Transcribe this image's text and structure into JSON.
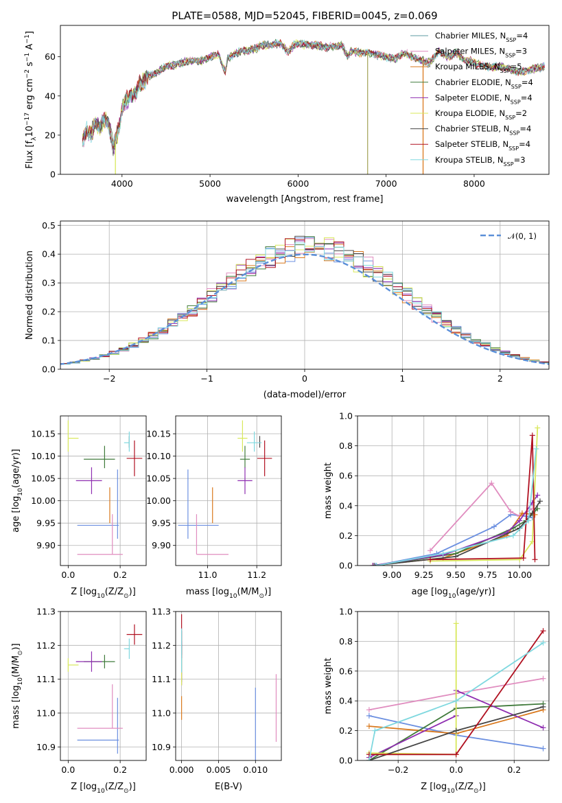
{
  "chart_data": [
    {
      "panel": "spectrum",
      "type": "line",
      "title": "PLATE=0588, MJD=52045, FIBERID=0045, z=0.069",
      "xlabel": "wavelength [Angstrom, rest frame]",
      "ylabel_parts": {
        "a": "Flux [f",
        "a_sub": "λ",
        "b": "10",
        "b_sup": "−17",
        "c": " erg cm",
        "c_sup": "−2",
        "d": " s",
        "d_sup": "−1",
        "e": " A",
        "e_sup": "−1",
        "f": "]"
      },
      "xlim": [
        3300,
        8850
      ],
      "ylim": [
        0,
        76
      ],
      "xticks": [
        "4000",
        "5000",
        "6000",
        "7000",
        "8000"
      ],
      "yticks": [
        "0",
        "20",
        "40",
        "60"
      ],
      "grid": false,
      "legend_placement": "top-right",
      "x": [
        3550,
        3600,
        3650,
        3700,
        3750,
        3800,
        3850,
        3900,
        3950,
        4000,
        4050,
        4100,
        4150,
        4200,
        4300,
        4400,
        4500,
        4600,
        4700,
        4800,
        4900,
        5000,
        5100,
        5175,
        5200,
        5300,
        5400,
        5500,
        5600,
        5700,
        5800,
        5893,
        5950,
        6000,
        6100,
        6200,
        6300,
        6400,
        6500,
        6563,
        6600,
        6700,
        6800,
        6900,
        7000,
        7100,
        7200,
        7300,
        7400,
        7500,
        7600,
        7700,
        7800,
        7900,
        8000,
        8100,
        8200,
        8300,
        8400,
        8500,
        8600,
        8700,
        8800
      ],
      "flux_avg": [
        17,
        22,
        20,
        27,
        24,
        29,
        26,
        14,
        20,
        33,
        38,
        40,
        41,
        46,
        50,
        52,
        55,
        56,
        57,
        58,
        58,
        60,
        61,
        52,
        59,
        62,
        63,
        64,
        66,
        66,
        67,
        62,
        66,
        67,
        66,
        66,
        65,
        65,
        66,
        60,
        63,
        62,
        62,
        61,
        60,
        59,
        62,
        60,
        58,
        57,
        63,
        60,
        62,
        58,
        57,
        55,
        55,
        55,
        54,
        52,
        53,
        54,
        55
      ],
      "series": [
        {
          "name_pre": "Chabrier MILES, N",
          "name_sub": "SSP",
          "name_post": "=4",
          "color": "#5b9aa0"
        },
        {
          "name_pre": "Salpeter MILES, N",
          "name_sub": "SSP",
          "name_post": "=3",
          "color": "#e08cbf"
        },
        {
          "name_pre": "Kroupa MILES, N",
          "name_sub": "SSP",
          "name_post": "=5",
          "color": "#d9781c"
        },
        {
          "name_pre": "Chabrier ELODIE, N",
          "name_sub": "SSP",
          "name_post": "=4",
          "color": "#3f7a3a"
        },
        {
          "name_pre": "Salpeter ELODIE, N",
          "name_sub": "SSP",
          "name_post": "=4",
          "color": "#8e2db0"
        },
        {
          "name_pre": "Kroupa ELODIE, N",
          "name_sub": "SSP",
          "name_post": "=2",
          "color": "#d8e85a"
        },
        {
          "name_pre": "Chabrier STELIB, N",
          "name_sub": "SSP",
          "name_post": "=4",
          "color": "#444444"
        },
        {
          "name_pre": "Salpeter STELIB, N",
          "name_sub": "SSP",
          "name_post": "=4",
          "color": "#b01020"
        },
        {
          "name_pre": "Kroupa STELIB, N",
          "name_sub": "SSP",
          "name_post": "=3",
          "color": "#7fd8df"
        }
      ],
      "drops": [
        {
          "x": 3925,
          "color": "#d8e85a"
        },
        {
          "x": 6790,
          "color": "#a8a860"
        },
        {
          "x": 7420,
          "color": "#d9781c"
        }
      ]
    },
    {
      "panel": "residuals",
      "type": "line",
      "xlabel": "(data-model)/error",
      "ylabel": "Normed distribution",
      "xlim": [
        -2.5,
        2.5
      ],
      "ylim": [
        0,
        0.515
      ],
      "xticks": [
        {
          "v": -2,
          "t": "−2"
        },
        {
          "v": -1,
          "t": "−1"
        },
        {
          "v": 0,
          "t": "0"
        },
        {
          "v": 1,
          "t": "1"
        },
        {
          "v": 2,
          "t": "2"
        }
      ],
      "yticks": [
        "0.0",
        "0.1",
        "0.2",
        "0.3",
        "0.4",
        "0.5"
      ],
      "grid": true,
      "legend_placement": "top-right",
      "reference_curve": {
        "name": "𝒩(0, 1)",
        "color": "#5b8fd8"
      },
      "bin_width": 0.1
    },
    {
      "panel": "age_vs_Z",
      "type": "scatter",
      "xlabel_parts": {
        "a": "Z [log",
        "a_sub": "10",
        "b": "(Z/Z",
        "b_sub": "⊙",
        "c": ")]"
      },
      "ylabel_parts": {
        "a": "age  [log",
        "a_sub": "10",
        "b": "(age/yr)]"
      },
      "xlim": [
        -0.03,
        0.3
      ],
      "ylim": [
        9.855,
        10.19
      ],
      "xticks": [
        "0.0",
        "0.2"
      ],
      "yticks": [
        "9.90",
        "9.95",
        "10.00",
        "10.05",
        "10.10",
        "10.15"
      ],
      "grid": true
    },
    {
      "panel": "age_vs_mass",
      "type": "scatter",
      "xlabel_parts": {
        "a": "mass [log",
        "a_sub": "10",
        "b": "(M/M",
        "b_sub": "⊙",
        "c": ")]"
      },
      "xlim": [
        10.87,
        11.3
      ],
      "ylim": [
        9.855,
        10.19
      ],
      "xticks": [
        "11.0",
        "11.2"
      ],
      "yticks": [
        "9.90",
        "9.95",
        "10.00",
        "10.05",
        "10.10",
        "10.15"
      ],
      "grid": true
    },
    {
      "panel": "weight_vs_age",
      "type": "line",
      "xlabel_parts": {
        "a": "age  [log",
        "a_sub": "10",
        "b": "(age/yr)]"
      },
      "ylabel": "mass weight",
      "xlim": [
        8.73,
        10.23
      ],
      "ylim": [
        0,
        1.0
      ],
      "xticks": [
        "9.00",
        "9.25",
        "9.50",
        "9.75",
        "10.00"
      ],
      "yticks": [
        "0.0",
        "0.2",
        "0.4",
        "0.6",
        "0.8",
        "1.0"
      ],
      "grid": true
    },
    {
      "panel": "mass_vs_Z",
      "type": "scatter",
      "xlabel_parts": {
        "a": "Z [log",
        "a_sub": "10",
        "b": "(Z/Z",
        "b_sub": "⊙",
        "c": ")]"
      },
      "ylabel_parts": {
        "a": "mass [log",
        "a_sub": "10",
        "b": "(M/M",
        "b_sub": "⊙",
        "c": ")]"
      },
      "xlim": [
        -0.03,
        0.3
      ],
      "ylim": [
        10.86,
        11.3
      ],
      "xticks": [
        "0.0",
        "0.2"
      ],
      "yticks": [
        "10.9",
        "11.0",
        "11.1",
        "11.2",
        "11.3"
      ],
      "grid": true
    },
    {
      "panel": "mass_vs_EBV",
      "type": "scatter",
      "xlabel": "E(B-V)",
      "xlim": [
        -0.0008,
        0.0135
      ],
      "ylim": [
        10.86,
        11.3
      ],
      "xticks": [
        "0.000",
        "0.005",
        "0.010"
      ],
      "yticks": [
        "10.9",
        "11.0",
        "11.1",
        "11.2",
        "11.3"
      ],
      "grid": true
    },
    {
      "panel": "weight_vs_Z",
      "type": "line",
      "xlabel_parts": {
        "a": "Z [log",
        "a_sub": "10",
        "b": "(Z/Z",
        "b_sub": "⊙",
        "c": ")]"
      },
      "ylabel": "mass weight",
      "xlim": [
        -0.34,
        0.32
      ],
      "ylim": [
        0,
        1.0
      ],
      "xticks": [
        {
          "v": -0.2,
          "t": "−0.2"
        },
        {
          "v": 0.0,
          "t": "0.0"
        },
        {
          "v": 0.2,
          "t": "0.2"
        }
      ],
      "yticks": [
        "0.0",
        "0.2",
        "0.4",
        "0.6",
        "0.8",
        "1.0"
      ],
      "grid": true
    }
  ],
  "models": [
    {
      "color": "#6b8fe0",
      "Z": 0.19,
      "Zerr": 0.0,
      "Zlo": 0.155,
      "Zhi": 0.005,
      "age": 9.945,
      "age_hi": 0.125,
      "age_lo": 0.03,
      "mass": 10.92,
      "mass_lo": 0.04,
      "mass_hi": 0.125,
      "ebv": 0.01,
      "w_age": [
        [
          8.87,
          0.0
        ],
        [
          9.35,
          0.08
        ],
        [
          9.8,
          0.26
        ],
        [
          9.93,
          0.34
        ],
        [
          10.05,
          0.33
        ],
        [
          10.1,
          0.32
        ]
      ],
      "w_Z": [
        [
          -0.3,
          0.3
        ],
        [
          0.0,
          0.17
        ],
        [
          0.3,
          0.08
        ]
      ]
    },
    {
      "color": "#e08cbf",
      "Z": 0.17,
      "Zlo": 0.135,
      "Zhi": 0.04,
      "age": 9.88,
      "age_hi": 0.09,
      "age_lo": 0.0,
      "mass": 10.955,
      "mass_lo": 0.0,
      "mass_hi": 0.13,
      "ebv": 0.0128,
      "w_age": [
        [
          9.3,
          0.1
        ],
        [
          9.78,
          0.55
        ],
        [
          9.93,
          0.36
        ],
        [
          10.0,
          0.33
        ],
        [
          10.1,
          0.38
        ]
      ],
      "w_Z": [
        [
          -0.3,
          0.34
        ],
        [
          0.0,
          0.45
        ],
        [
          0.3,
          0.55
        ]
      ]
    },
    {
      "color": "#d9781c",
      "Z": 0.16,
      "Zlo": 0.0,
      "Zhi": 0.0,
      "age": 10.03,
      "age_hi": 0.0,
      "age_lo": 0.08,
      "mass": 11.02,
      "mass_lo": 0.0,
      "mass_hi": 0.0,
      "ebv": 0.0,
      "w_age": [
        [
          8.85,
          0.0
        ],
        [
          9.4,
          0.05
        ],
        [
          9.9,
          0.2
        ],
        [
          10.02,
          0.35
        ],
        [
          10.12,
          0.34
        ]
      ],
      "w_Z": [
        [
          -0.3,
          0.23
        ],
        [
          0.0,
          0.18
        ],
        [
          0.3,
          0.34
        ]
      ]
    },
    {
      "color": "#3f7a3a",
      "Z": 0.14,
      "Zlo": 0.08,
      "Zhi": 0.04,
      "age": 10.093,
      "age_hi": 0.03,
      "age_lo": 0.02,
      "mass": 11.152,
      "mass_lo": 0.02,
      "mass_hi": 0.02,
      "ebv": 0.0,
      "w_age": [
        [
          8.88,
          0.0
        ],
        [
          9.5,
          0.08
        ],
        [
          9.95,
          0.25
        ],
        [
          10.05,
          0.3
        ],
        [
          10.14,
          0.38
        ]
      ],
      "w_Z": [
        [
          -0.3,
          0.0
        ],
        [
          0.0,
          0.35
        ],
        [
          0.3,
          0.38
        ]
      ]
    },
    {
      "color": "#8e2db0",
      "Z": 0.09,
      "Zlo": 0.06,
      "Zhi": 0.04,
      "age": 10.045,
      "age_hi": 0.03,
      "age_lo": 0.03,
      "mass": 11.152,
      "mass_lo": 0.03,
      "mass_hi": 0.03,
      "ebv": 0.0,
      "w_age": [
        [
          8.85,
          0.0
        ],
        [
          9.4,
          0.07
        ],
        [
          9.9,
          0.22
        ],
        [
          10.0,
          0.3
        ],
        [
          10.1,
          0.42
        ],
        [
          10.14,
          0.47
        ]
      ],
      "w_Z": [
        [
          -0.3,
          0.02
        ],
        [
          0.0,
          0.3
        ],
        [
          0.0,
          0.47
        ],
        [
          0.3,
          0.22
        ]
      ]
    },
    {
      "color": "#d8e85a",
      "Z": 0.0,
      "Zlo": 0.0,
      "Zhi": 0.04,
      "age": 10.14,
      "age_hi": 0.04,
      "age_lo": 0.03,
      "mass": 11.142,
      "mass_lo": 0.02,
      "mass_hi": 0.02,
      "ebv": 0.0,
      "w_age": [
        [
          9.3,
          0.03
        ],
        [
          10.0,
          0.04
        ],
        [
          10.1,
          0.16
        ],
        [
          10.14,
          0.92
        ]
      ],
      "w_Z": [
        [
          -0.3,
          0.05
        ],
        [
          0.0,
          0.04
        ],
        [
          0.0,
          0.92
        ]
      ]
    },
    {
      "color": "#444444",
      "Z": 0.235,
      "Zlo": 0.0,
      "Zhi": 0.0,
      "age": 10.132,
      "age_hi": 0.013,
      "age_lo": 0.013,
      "mass": 11.212,
      "mass_lo": 0.0,
      "mass_hi": 0.0,
      "ebv": 0.0,
      "w_age": [
        [
          8.86,
          0.0
        ],
        [
          9.5,
          0.06
        ],
        [
          10.0,
          0.25
        ],
        [
          10.1,
          0.35
        ],
        [
          10.16,
          0.43
        ]
      ],
      "w_Z": [
        [
          -0.3,
          0.0
        ],
        [
          0.0,
          0.2
        ],
        [
          0.3,
          0.36
        ]
      ]
    },
    {
      "color": "#b01020",
      "Z": 0.255,
      "Zlo": 0.03,
      "Zhi": 0.03,
      "age": 10.095,
      "age_hi": 0.04,
      "age_lo": 0.04,
      "mass": 11.232,
      "mass_lo": 0.03,
      "mass_hi": 0.03,
      "ebv": 0.0,
      "w_age": [
        [
          9.3,
          0.04
        ],
        [
          10.03,
          0.05
        ],
        [
          10.1,
          0.87
        ],
        [
          10.12,
          0.04
        ]
      ],
      "w_Z": [
        [
          -0.3,
          0.04
        ],
        [
          0.0,
          0.04
        ],
        [
          0.3,
          0.87
        ]
      ]
    },
    {
      "color": "#7fd8df",
      "Z": 0.235,
      "Zlo": 0.02,
      "Zhi": 0.0,
      "age": 10.13,
      "age_hi": 0.025,
      "age_lo": 0.02,
      "mass": 11.19,
      "mass_lo": 0.03,
      "mass_hi": 0.03,
      "ebv": 0.0,
      "w_age": [
        [
          8.88,
          0.0
        ],
        [
          9.4,
          0.08
        ],
        [
          9.95,
          0.2
        ],
        [
          10.07,
          0.3
        ],
        [
          10.13,
          0.78
        ]
      ],
      "w_Z": [
        [
          -0.3,
          0.0
        ],
        [
          -0.28,
          0.2
        ],
        [
          0.0,
          0.4
        ],
        [
          0.3,
          0.79
        ]
      ]
    }
  ]
}
